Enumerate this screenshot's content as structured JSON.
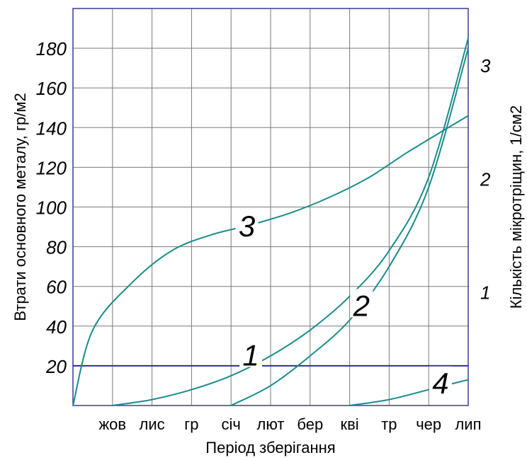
{
  "chart_data": {
    "type": "line",
    "xlabel": "Період зберігання",
    "ylabel": "Втрати основного металу, гр/м2",
    "y2label": "Кількість мікротріщин, 1/см2",
    "categories": [
      "жов",
      "лис",
      "гр",
      "січ",
      "лют",
      "бер",
      "кві",
      "тр",
      "чер",
      "лип"
    ],
    "ylim": [
      0,
      200
    ],
    "yticks": [
      20,
      40,
      60,
      80,
      100,
      120,
      140,
      160,
      180
    ],
    "y2lim": [
      0,
      3.5
    ],
    "y2ticks": [
      {
        "value": 1,
        "label": "1"
      },
      {
        "value": 2,
        "label": "2"
      },
      {
        "value": 3,
        "label": "3"
      }
    ],
    "grid": true,
    "highlight_line_y": 20,
    "series": [
      {
        "name": "1",
        "color": "#1a8c8c",
        "axis": "left",
        "points": [
          [
            1,
            0
          ],
          [
            2,
            3
          ],
          [
            3,
            8
          ],
          [
            4,
            15
          ],
          [
            5,
            25
          ],
          [
            6,
            38
          ],
          [
            7,
            55
          ],
          [
            8,
            78
          ],
          [
            9,
            115
          ],
          [
            10,
            185
          ]
        ],
        "label_at": [
          4.5,
          23
        ]
      },
      {
        "name": "2",
        "color": "#1a8c8c",
        "axis": "left",
        "points": [
          [
            4,
            0
          ],
          [
            5,
            10
          ],
          [
            6,
            25
          ],
          [
            7,
            43
          ],
          [
            8,
            70
          ],
          [
            9,
            110
          ],
          [
            10,
            180
          ]
        ],
        "label_at": [
          7.3,
          48
        ]
      },
      {
        "name": "3",
        "color": "#1a8c8c",
        "axis": "left",
        "points": [
          [
            0,
            0
          ],
          [
            0.5,
            38
          ],
          [
            1.5,
            62
          ],
          [
            2.5,
            78
          ],
          [
            3.5,
            86
          ],
          [
            4.5,
            91
          ],
          [
            5.5,
            97
          ],
          [
            6.5,
            105
          ],
          [
            7.5,
            115
          ],
          [
            8.5,
            128
          ],
          [
            10,
            146
          ]
        ],
        "label_at": [
          4.4,
          88
        ]
      },
      {
        "name": "4",
        "color": "#1a8c8c",
        "axis": "left",
        "points": [
          [
            7,
            0
          ],
          [
            8,
            3
          ],
          [
            9,
            8
          ],
          [
            9.6,
            11
          ],
          [
            10,
            13
          ]
        ],
        "label_at": [
          9.3,
          9
        ]
      }
    ]
  }
}
